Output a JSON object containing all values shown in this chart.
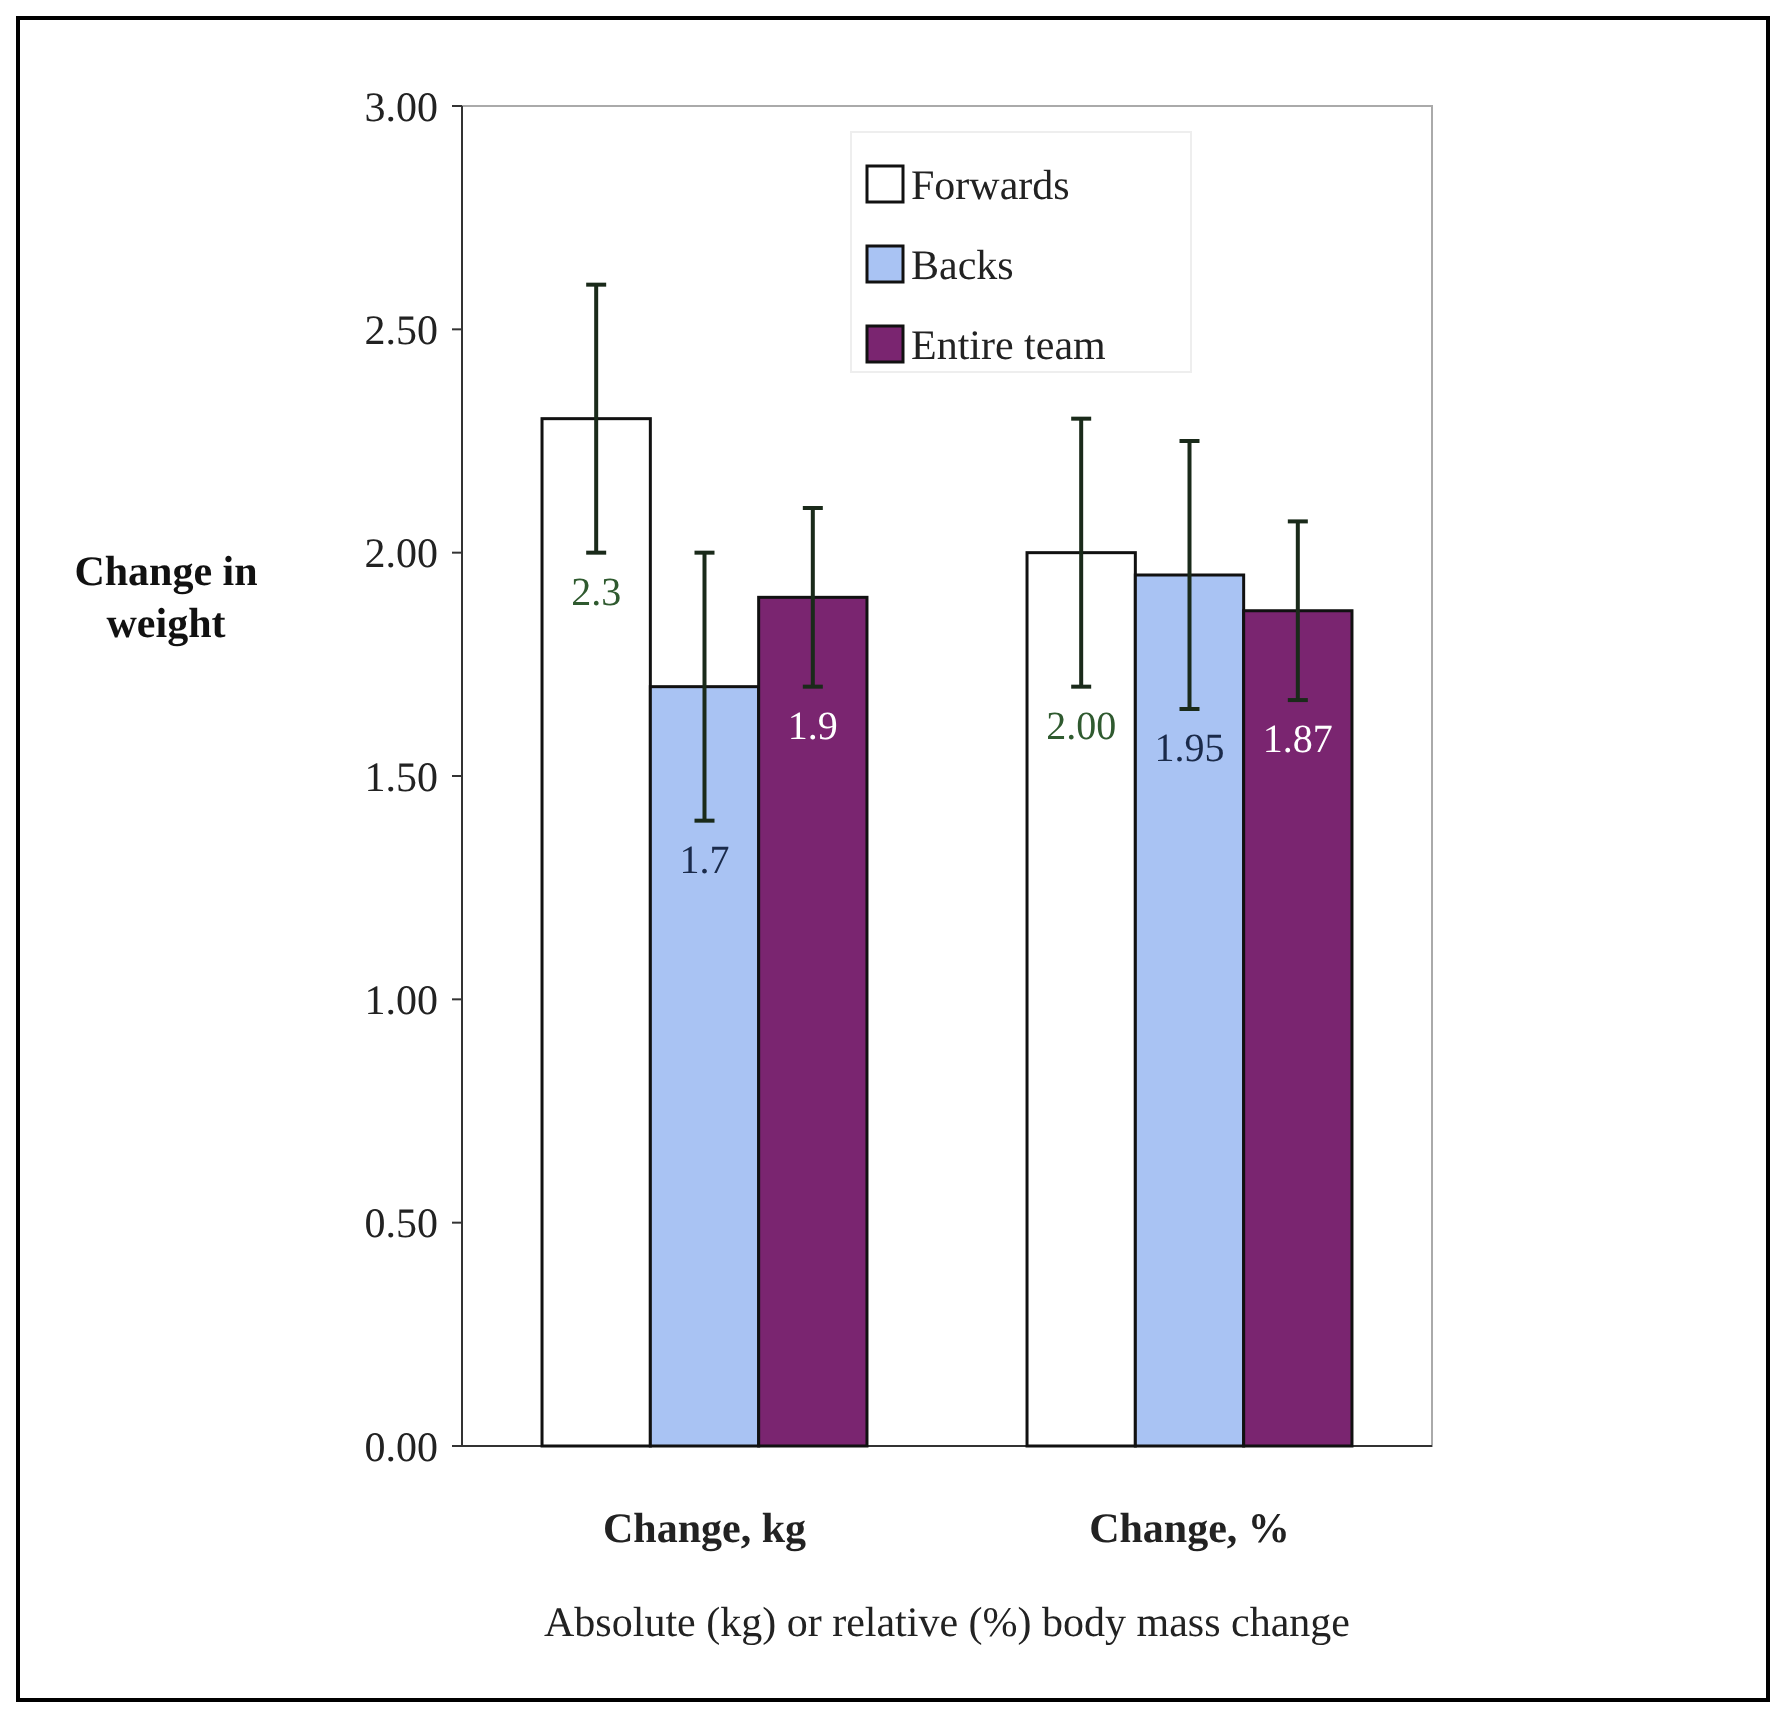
{
  "chart_data": {
    "type": "bar",
    "xlabel": "Absolute (kg) or relative (%) body mass change",
    "ylabel": "Change in weight",
    "categories": [
      "Change, kg",
      "Change, %"
    ],
    "series": [
      {
        "name": "Forwards",
        "color": "#ffffff",
        "values": [
          2.3,
          2.0
        ],
        "errors": [
          0.3,
          0.3
        ],
        "value_labels": [
          "2.3",
          "2.00"
        ]
      },
      {
        "name": "Backs",
        "color": "#a9c3f3",
        "values": [
          1.7,
          1.95
        ],
        "errors": [
          0.3,
          0.3
        ],
        "value_labels": [
          "1.7",
          "1.95"
        ]
      },
      {
        "name": "Entire team",
        "color": "#7a2570",
        "values": [
          1.9,
          1.87
        ],
        "errors": [
          0.2,
          0.2
        ],
        "value_labels": [
          "1.9",
          "1.87"
        ]
      }
    ],
    "ylim": [
      0,
      3
    ],
    "yticks": [
      {
        "value": 0,
        "label": "0.00"
      },
      {
        "value": 0.5,
        "label": "0.50"
      },
      {
        "value": 1,
        "label": "1.00"
      },
      {
        "value": 1.5,
        "label": "1.50"
      },
      {
        "value": 2,
        "label": "2.00"
      },
      {
        "value": 2.5,
        "label": "2.50"
      },
      {
        "value": 3,
        "label": "3.00"
      }
    ],
    "grid": false,
    "legend": "top"
  }
}
